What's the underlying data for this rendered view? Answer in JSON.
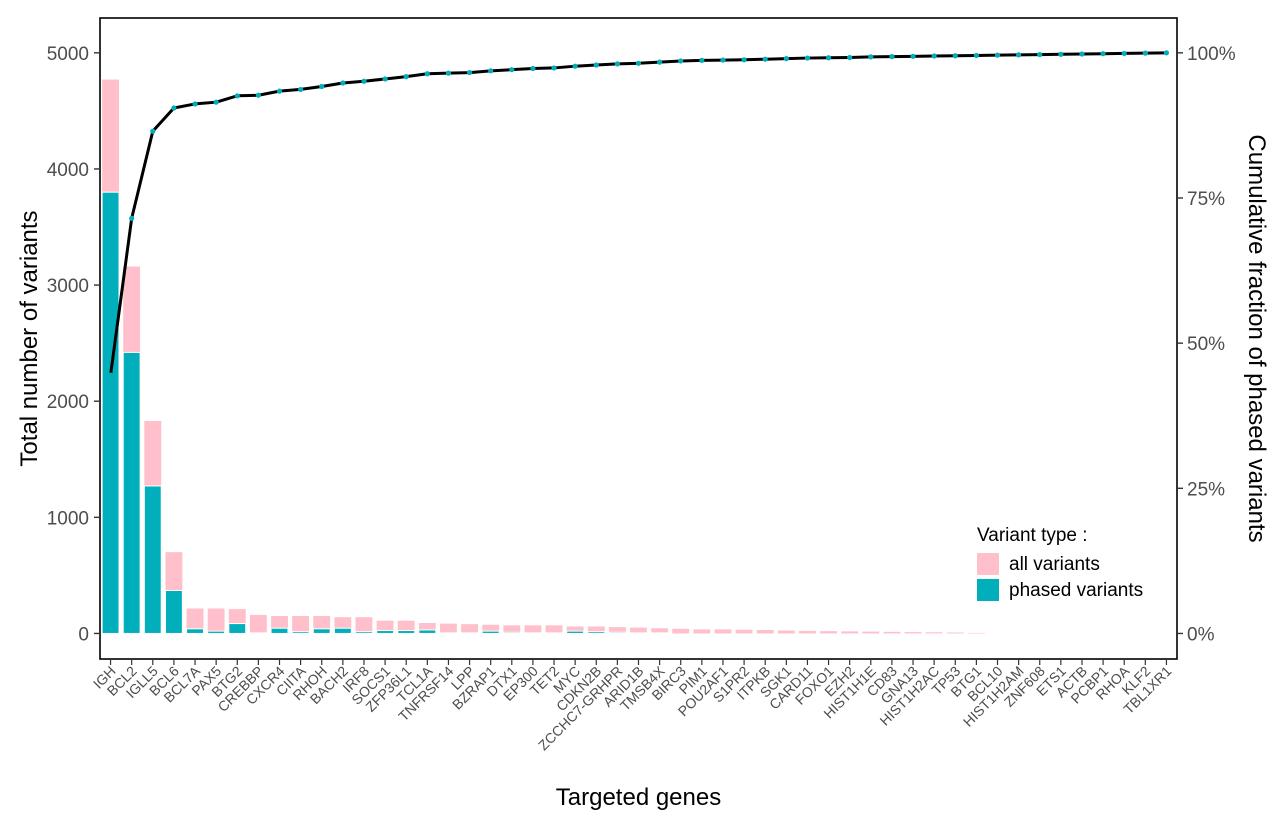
{
  "chart_data": {
    "type": "bar+line",
    "xlabel": "Targeted genes",
    "ylabel": "Total number of variants",
    "y2label": "Cumulative fraction of phased variants",
    "ylim": [
      -220,
      5300
    ],
    "yticks": [
      0,
      1000,
      2000,
      3000,
      4000,
      5000
    ],
    "y2ticks": [
      0,
      25,
      50,
      75,
      100
    ],
    "y2tick_labels": [
      "0%",
      "25%",
      "50%",
      "75%",
      "100%"
    ],
    "categories": [
      "IGH",
      "BCL2",
      "IGLL5",
      "BCL6",
      "BCL7A",
      "PAX5",
      "BTG2",
      "CREBBP",
      "CXCR4",
      "CIITA",
      "RHOH",
      "BACH2",
      "IRF8",
      "SOCS1",
      "ZFP36L1",
      "TCL1A",
      "TNFRSF14",
      "LPP",
      "BZRAP1",
      "DTX1",
      "EP300",
      "TET2",
      "MYC",
      "CDKN2B",
      "ZCCHC7-GRHPR",
      "ARID1B",
      "TMSB4X",
      "BIRC3",
      "PIM1",
      "POU2AF1",
      "S1PR2",
      "ITPKB",
      "SGK1",
      "CARD11",
      "FOXO1",
      "EZH2",
      "HIST1H1E",
      "CD83",
      "GNA13",
      "HIST1H2AC",
      "TP53",
      "BTG1",
      "BCL10",
      "HIST1H2AM",
      "ZNF608",
      "ETS1",
      "ACTB",
      "PCBP1",
      "RHOA",
      "KLF2",
      "TBL1XR1"
    ],
    "series": [
      {
        "name": "all variants",
        "color": "#FFC0CB",
        "values": [
          4770,
          3160,
          1830,
          700,
          215,
          215,
          210,
          160,
          150,
          150,
          150,
          140,
          140,
          110,
          110,
          90,
          85,
          80,
          75,
          70,
          70,
          70,
          60,
          60,
          55,
          50,
          45,
          40,
          35,
          35,
          32,
          30,
          25,
          22,
          20,
          18,
          16,
          14,
          12,
          10,
          8,
          5,
          0,
          0,
          0,
          0,
          0,
          0,
          0,
          0,
          0
        ]
      },
      {
        "name": "phased variants",
        "color": "#00AFBB",
        "values": [
          3800,
          2420,
          1270,
          370,
          40,
          20,
          85,
          5,
          45,
          15,
          40,
          45,
          15,
          25,
          25,
          30,
          5,
          5,
          20,
          10,
          5,
          5,
          20,
          15,
          10,
          5,
          5,
          0,
          0,
          0,
          0,
          0,
          0,
          0,
          0,
          0,
          0,
          0,
          0,
          0,
          0,
          0,
          0,
          0,
          0,
          0,
          0,
          0,
          0,
          0,
          0
        ]
      },
      {
        "name": "cumulative fraction of phased variants",
        "type": "line",
        "color": "#000000",
        "marker_color": "#00AFBB",
        "values": [
          44.5,
          71.5,
          86.5,
          90.5,
          91.2,
          91.5,
          92.6,
          92.7,
          93.4,
          93.7,
          94.2,
          94.8,
          95.1,
          95.5,
          95.9,
          96.4,
          96.5,
          96.6,
          96.9,
          97.1,
          97.3,
          97.4,
          97.7,
          97.9,
          98.1,
          98.2,
          98.4,
          98.6,
          98.7,
          98.75,
          98.8,
          98.9,
          99.0,
          99.1,
          99.15,
          99.2,
          99.3,
          99.35,
          99.4,
          99.45,
          99.5,
          99.55,
          99.6,
          99.65,
          99.7,
          99.75,
          99.8,
          99.85,
          99.9,
          99.95,
          100
        ]
      }
    ],
    "legend": {
      "title": "Variant type :",
      "items": [
        "all variants",
        "phased variants"
      ],
      "placement": "bottom-right"
    }
  }
}
